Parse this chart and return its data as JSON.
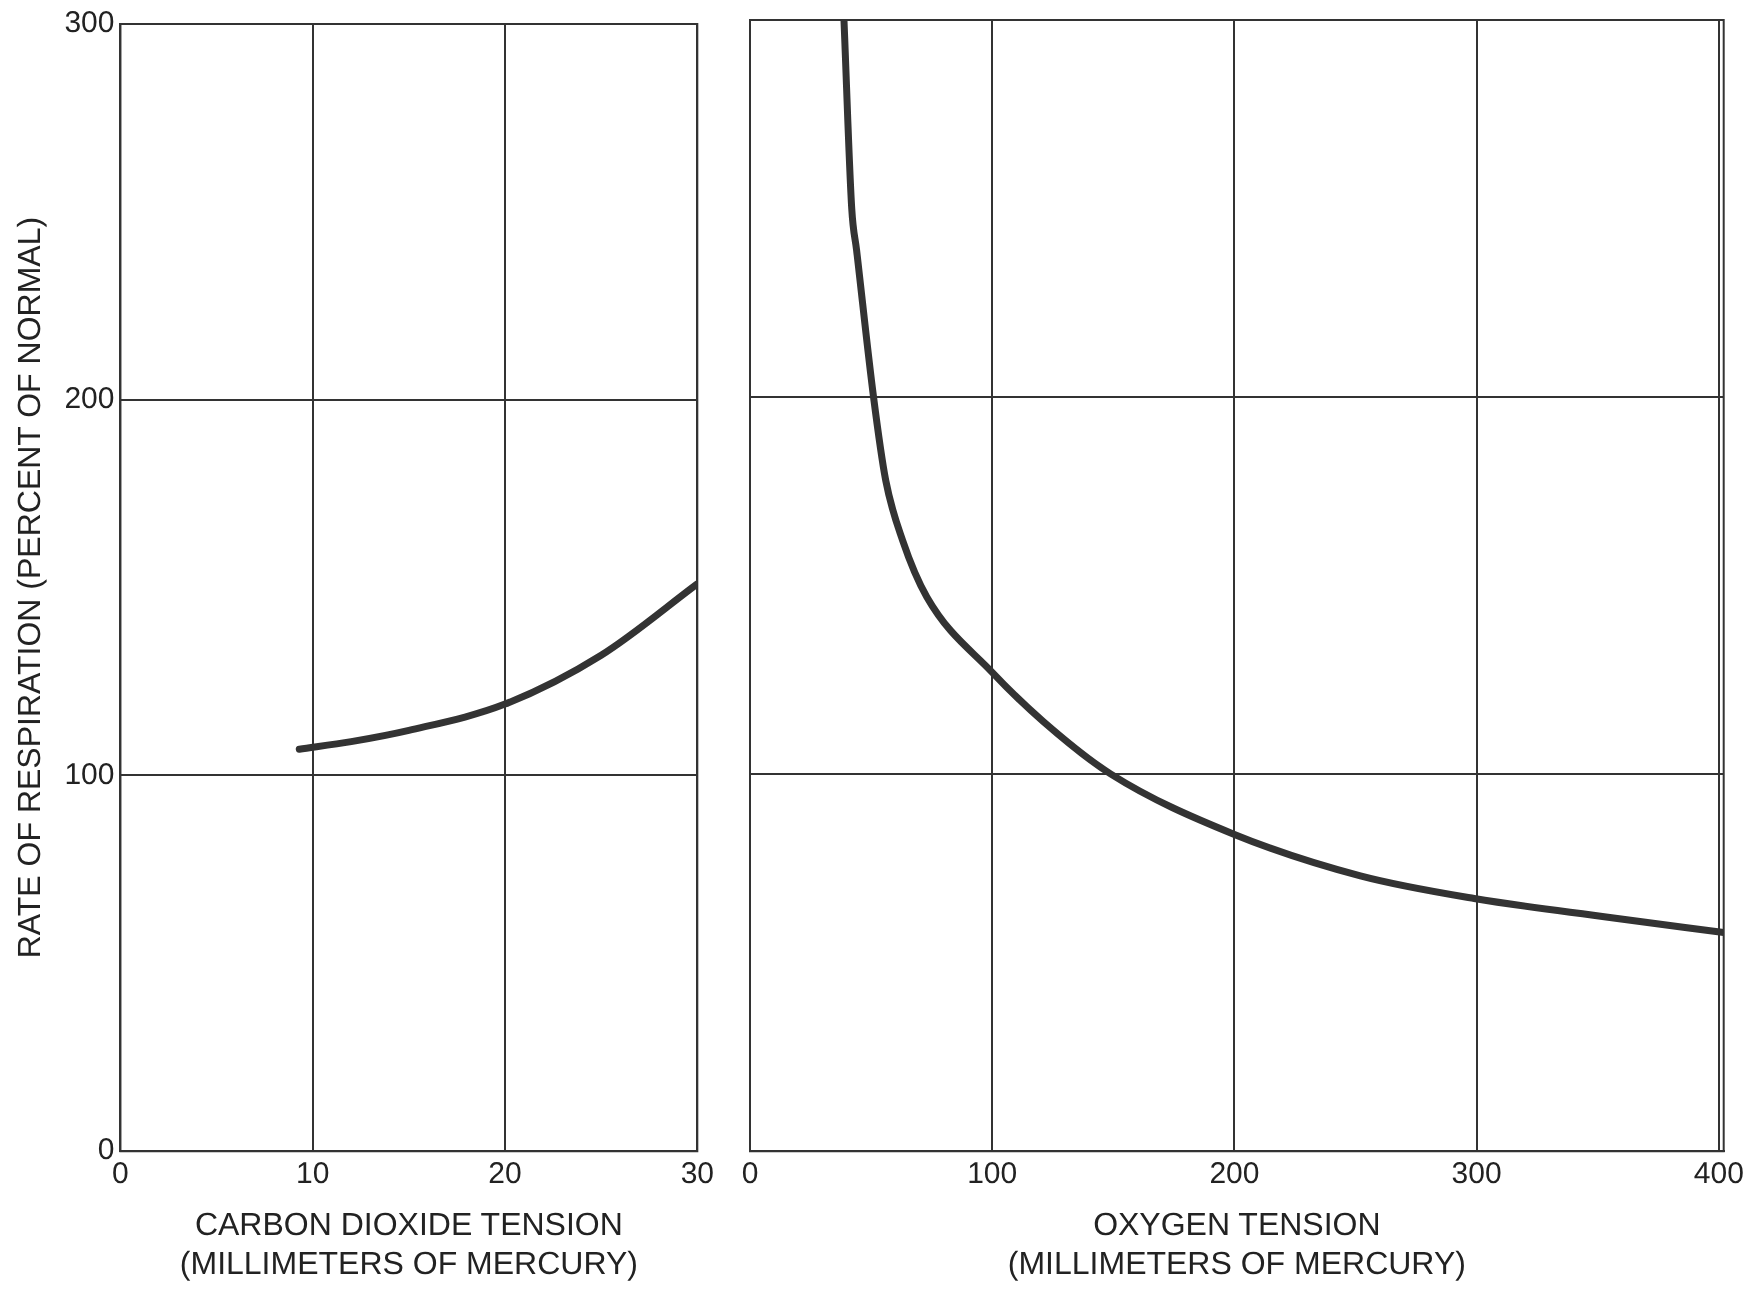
{
  "chart_data": [
    {
      "type": "line",
      "xlabel": "CARBON DIOXIDE TENSION\n(MILLIMETERS OF MERCURY)",
      "ylabel": "RATE OF RESPIRATION (PERCENT OF NORMAL)",
      "x": [
        9.3,
        12,
        15,
        20,
        25,
        30
      ],
      "series": [
        {
          "color": "#333333",
          "values": [
            107,
            109,
            112,
            119,
            132,
            151
          ]
        }
      ],
      "xlim": [
        0,
        30
      ],
      "xticks": [
        0,
        10,
        20,
        30
      ],
      "ylim": [
        0,
        300
      ],
      "yticks": [
        0,
        100,
        200,
        300
      ],
      "grid": true,
      "legend": false,
      "marker": "none",
      "line_style": "solid"
    },
    {
      "type": "line",
      "xlabel": "OXYGEN TENSION\n(MILLIMETERS OF MERCURY)",
      "x": [
        38.8,
        42,
        44,
        51,
        56,
        63,
        73,
        100,
        121,
        149,
        200,
        252,
        299,
        355,
        402
      ],
      "series": [
        {
          "color": "#333333",
          "values": [
            300,
            250,
            239,
            200,
            178,
            162,
            147,
            127,
            114,
            100,
            84,
            73,
            67,
            62,
            58
          ]
        }
      ],
      "xlim": [
        0,
        402
      ],
      "xticks": [
        0,
        100,
        200,
        300,
        400
      ],
      "ylim": [
        0,
        300
      ],
      "yticks": [
        0,
        100,
        200,
        300
      ],
      "grid": true,
      "legend": false,
      "marker": "none",
      "line_style": "solid",
      "tick_labels": "x"
    }
  ]
}
